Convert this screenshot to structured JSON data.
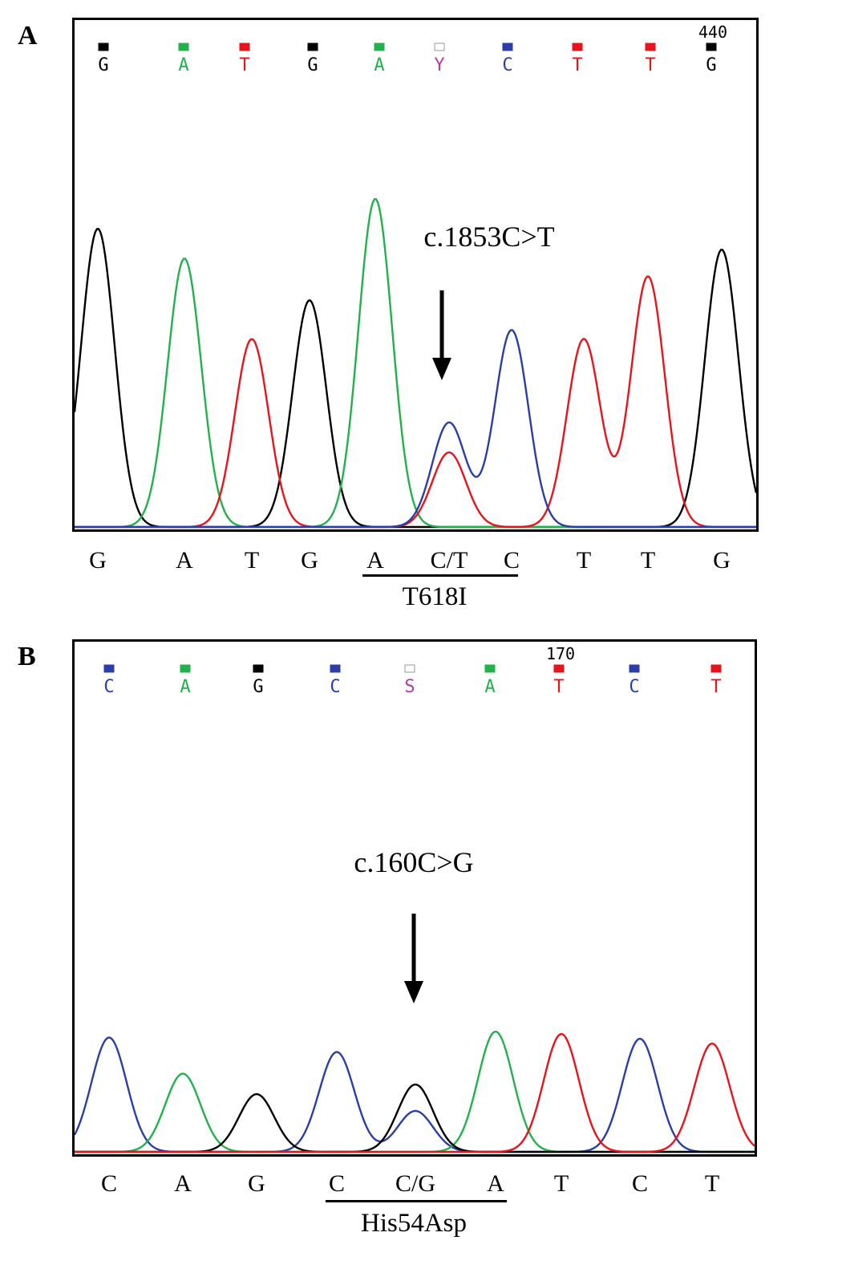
{
  "panels": [
    {
      "letter": "A",
      "position_number": "440",
      "base_calls": [
        {
          "base": "G",
          "color": "#000000"
        },
        {
          "base": "A",
          "color": "#22b14c"
        },
        {
          "base": "T",
          "color": "#e8141c"
        },
        {
          "base": "G",
          "color": "#000000"
        },
        {
          "base": "A",
          "color": "#22b14c"
        },
        {
          "base": "Y",
          "color": "#b03cb0",
          "ambiguous": true
        },
        {
          "base": "C",
          "color": "#2b3ea8"
        },
        {
          "base": "T",
          "color": "#e8141c"
        },
        {
          "base": "T",
          "color": "#e8141c"
        },
        {
          "base": "G",
          "color": "#000000"
        }
      ],
      "sequence": [
        "G",
        "A",
        "T",
        "G",
        "A",
        "C/T",
        "C",
        "T",
        "T",
        "G"
      ],
      "mutation_label": "c.1853C>T",
      "protein_change": "T618I"
    },
    {
      "letter": "B",
      "position_number": "170",
      "base_calls": [
        {
          "base": "C",
          "color": "#2b3ea8"
        },
        {
          "base": "A",
          "color": "#22b14c"
        },
        {
          "base": "G",
          "color": "#000000"
        },
        {
          "base": "C",
          "color": "#2b3ea8"
        },
        {
          "base": "S",
          "color": "#b03cb0",
          "ambiguous": true
        },
        {
          "base": "A",
          "color": "#22b14c"
        },
        {
          "base": "T",
          "color": "#e8141c"
        },
        {
          "base": "C",
          "color": "#2b3ea8"
        },
        {
          "base": "T",
          "color": "#e8141c"
        }
      ],
      "sequence": [
        "C",
        "A",
        "G",
        "C",
        "C/G",
        "A",
        "T",
        "C",
        "T"
      ],
      "mutation_label": "c.160C>G",
      "protein_change": "His54Asp"
    }
  ],
  "chart_data": [
    {
      "type": "line",
      "title": "",
      "xlabel": "",
      "ylabel": "",
      "series": [
        {
          "base": "G",
          "color": "#000000",
          "peaks": [
            [
              1,
              1.0
            ],
            [
              4,
              0.76
            ],
            [
              10,
              0.93
            ]
          ]
        },
        {
          "base": "A",
          "color": "#22b14c",
          "peaks": [
            [
              2,
              0.9
            ],
            [
              5,
              1.1
            ]
          ]
        },
        {
          "base": "T",
          "color": "#e8141c",
          "peaks": [
            [
              3,
              0.63
            ],
            [
              6,
              0.25
            ],
            [
              8,
              0.63
            ],
            [
              9,
              0.84
            ]
          ]
        },
        {
          "base": "C",
          "color": "#2b3ea8",
          "peaks": [
            [
              6,
              0.35
            ],
            [
              7,
              0.66
            ]
          ]
        }
      ]
    },
    {
      "type": "line",
      "title": "",
      "xlabel": "",
      "ylabel": "",
      "series": [
        {
          "base": "C",
          "color": "#2b3ea8",
          "peaks": [
            [
              1,
              0.95
            ],
            [
              4,
              0.83
            ],
            [
              5,
              0.34
            ],
            [
              8,
              0.94
            ]
          ]
        },
        {
          "base": "A",
          "color": "#22b14c",
          "peaks": [
            [
              2,
              0.65
            ],
            [
              6,
              1.0
            ]
          ]
        },
        {
          "base": "G",
          "color": "#000000",
          "peaks": [
            [
              3,
              0.48
            ],
            [
              5,
              0.56
            ]
          ]
        },
        {
          "base": "T",
          "color": "#e8141c",
          "peaks": [
            [
              7,
              0.98
            ],
            [
              9,
              0.9
            ]
          ]
        }
      ]
    }
  ]
}
